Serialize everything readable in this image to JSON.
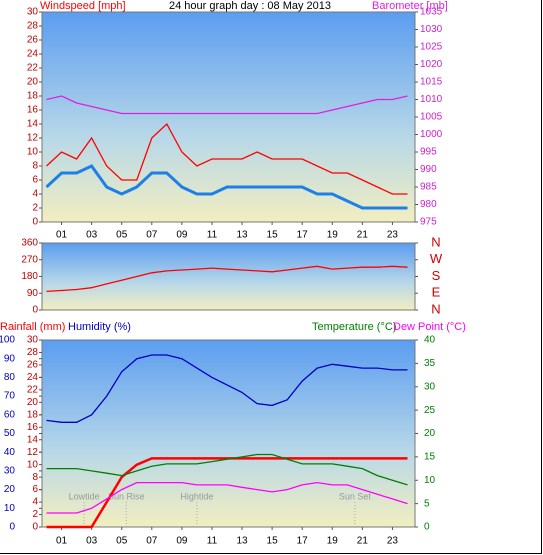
{
  "chart_data": [
    {
      "type": "line",
      "title": "24 hour graph day : 08 May 2013",
      "y_label": "Windspeed [mph]",
      "y2_label": "Barometer [mb]",
      "x": [
        0,
        1,
        2,
        3,
        4,
        5,
        6,
        7,
        8,
        9,
        10,
        11,
        12,
        13,
        14,
        15,
        16,
        17,
        18,
        19,
        20,
        21,
        22,
        23,
        24
      ],
      "xlim": [
        -0.3,
        24.5
      ],
      "xticks": [
        {
          "value": 1,
          "label": "01"
        },
        {
          "value": 3,
          "label": "03"
        },
        {
          "value": 5,
          "label": "05"
        },
        {
          "value": 7,
          "label": "07"
        },
        {
          "value": 9,
          "label": "09"
        },
        11,
        13,
        15,
        17,
        19,
        21,
        23
      ],
      "ylim": [
        0,
        30
      ],
      "yticks": [
        0,
        2,
        4,
        6,
        8,
        10,
        12,
        14,
        16,
        18,
        20,
        22,
        24,
        26,
        28,
        30
      ],
      "y2lim": [
        975,
        1035
      ],
      "y2ticks": [
        975,
        980,
        985,
        990,
        995,
        1000,
        1005,
        1010,
        1015,
        1020,
        1025,
        1030,
        1035
      ],
      "series": [
        {
          "color": "#ff0000",
          "values": [
            8,
            10,
            9,
            12,
            8,
            6,
            6,
            12,
            14,
            10,
            8,
            9,
            9,
            9,
            10,
            9,
            9,
            9,
            8,
            7,
            7,
            6,
            5,
            4,
            4
          ]
        },
        {
          "color": "#1e7fe8",
          "values": [
            5,
            7,
            7,
            8,
            5,
            4,
            5,
            7,
            7,
            5,
            4,
            4,
            5,
            5,
            5,
            5,
            5,
            5,
            4,
            4,
            3,
            2,
            2,
            2,
            2
          ]
        },
        {
          "color": "#e020e0",
          "axis": "y2",
          "values": [
            1010,
            1011,
            1009,
            1008,
            1007,
            1006,
            1006,
            1006,
            1006,
            1006,
            1006,
            1006,
            1006,
            1006,
            1006,
            1006,
            1006,
            1006,
            1006,
            1007,
            1008,
            1009,
            1010,
            1010,
            1011
          ]
        }
      ]
    },
    {
      "type": "line",
      "x": [
        0,
        1,
        2,
        3,
        4,
        5,
        6,
        7,
        8,
        9,
        10,
        11,
        12,
        13,
        14,
        15,
        16,
        17,
        18,
        19,
        20,
        21,
        22,
        23,
        24
      ],
      "xlim": [
        -0.3,
        24.5
      ],
      "ylim": [
        0,
        360
      ],
      "yticks": [
        0,
        90,
        180,
        270,
        360
      ],
      "y2lim": [
        0,
        360
      ],
      "y2ticks": [
        {
          "value": 360,
          "label": "N"
        },
        {
          "value": 270,
          "label": "W"
        },
        {
          "value": 180,
          "label": "S"
        },
        {
          "value": 90,
          "label": "E"
        },
        {
          "value": 0,
          "label": "N"
        }
      ],
      "series": [
        {
          "color": "#ff0000",
          "values": [
            100,
            105,
            110,
            120,
            140,
            160,
            180,
            200,
            210,
            215,
            220,
            225,
            220,
            215,
            210,
            205,
            215,
            225,
            235,
            220,
            225,
            230,
            230,
            235,
            230
          ]
        }
      ]
    },
    {
      "type": "line",
      "x": [
        0,
        1,
        2,
        3,
        4,
        5,
        6,
        7,
        8,
        9,
        10,
        11,
        12,
        13,
        14,
        15,
        16,
        17,
        18,
        19,
        20,
        21,
        22,
        23,
        24
      ],
      "xlim": [
        -0.3,
        24.5
      ],
      "xticks": [
        {
          "value": 1,
          "label": "01"
        },
        {
          "value": 3,
          "label": "03"
        },
        {
          "value": 5,
          "label": "05"
        },
        {
          "value": 7,
          "label": "07"
        },
        {
          "value": 9,
          "label": "09"
        },
        11,
        13,
        15,
        17,
        19,
        21,
        23
      ],
      "ylim": [
        0,
        30
      ],
      "yticks": [
        0,
        2,
        4,
        6,
        8,
        10,
        12,
        14,
        16,
        18,
        20,
        22,
        24,
        26,
        28,
        30
      ],
      "y2lim": [
        0,
        40
      ],
      "y2ticks": [
        0,
        5,
        10,
        15,
        20,
        25,
        30,
        35,
        40
      ],
      "y3lim": [
        0,
        100
      ],
      "y3ticks": [
        0,
        10,
        20,
        30,
        40,
        50,
        60,
        70,
        80,
        90,
        100
      ],
      "series": [
        {
          "name": "Rainfall (mm)",
          "color": "#ff0000",
          "values": [
            0,
            0,
            0,
            0,
            4,
            8,
            10,
            11,
            11,
            11,
            11,
            11,
            11,
            11,
            11,
            11,
            11,
            11,
            11,
            11,
            11,
            11,
            11,
            11,
            11
          ]
        },
        {
          "name": "Humidity (%)",
          "color": "#0000c0",
          "axis": "y3",
          "values": [
            57,
            56,
            56,
            60,
            70,
            83,
            90,
            92,
            92,
            90,
            85,
            80,
            76,
            72,
            66,
            65,
            68,
            78,
            85,
            87,
            86,
            85,
            85,
            84,
            84
          ]
        },
        {
          "name": "Temperature (°C)",
          "color": "#008000",
          "axis": "y2",
          "values": [
            12.5,
            12.5,
            12.5,
            12,
            11.5,
            11,
            12,
            13,
            13.5,
            13.5,
            13.5,
            14,
            14.5,
            15,
            15.5,
            15.5,
            14.5,
            13.5,
            13.5,
            13.5,
            13,
            12.5,
            11,
            10,
            9
          ]
        },
        {
          "name": "Dew Point (°C)",
          "color": "#ff00ff",
          "axis": "y2",
          "values": [
            3,
            3,
            3,
            4,
            6,
            8,
            9.5,
            9.5,
            9.5,
            9.5,
            9,
            9,
            9,
            8.5,
            8,
            7.5,
            8,
            9,
            9.5,
            9,
            9,
            8,
            7,
            6,
            5
          ]
        }
      ],
      "annotations": [
        {
          "text": "Lowtide",
          "x": 2.5
        },
        {
          "text": "Sun Rise",
          "x": 5.3
        },
        {
          "text": "Hightide",
          "x": 10
        },
        {
          "text": "Sun Set",
          "x": 20.5
        }
      ]
    }
  ]
}
